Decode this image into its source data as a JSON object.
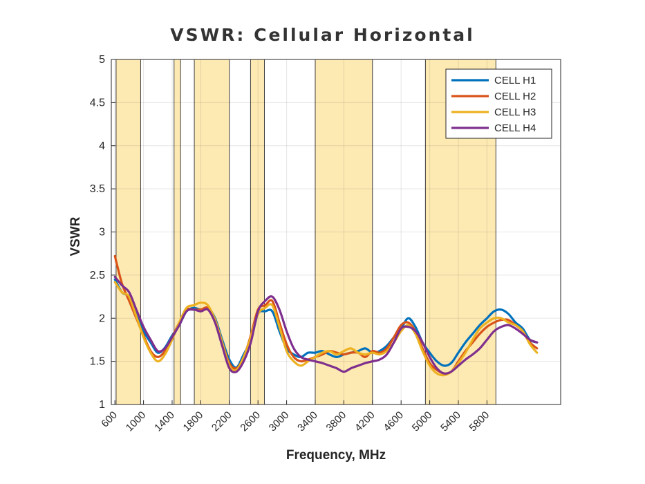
{
  "chart_data": {
    "type": "line",
    "title": "VSWR: Cellular Horizontal",
    "xlabel": "Frequency, MHz",
    "ylabel": "VSWR",
    "xlim": [
      550,
      6830
    ],
    "ylim": [
      1,
      5
    ],
    "xticks": [
      600,
      1000,
      1400,
      1800,
      2200,
      2600,
      3000,
      3400,
      3800,
      4200,
      4600,
      5000,
      5400,
      5800
    ],
    "yticks": [
      1,
      1.5,
      2,
      2.5,
      3,
      3.5,
      4,
      4.5,
      5
    ],
    "ytick_labels": [
      "1",
      "1.5",
      "2",
      "2.5",
      "3",
      "3.5",
      "4",
      "4.5",
      "5"
    ],
    "grid": true,
    "legend_location": "top-right",
    "band_color": "#fde9b2",
    "shaded_bands": [
      [
        617,
        960
      ],
      [
        1427,
        1518
      ],
      [
        1710,
        2200
      ],
      [
        2496,
        2690
      ],
      [
        3400,
        4200
      ],
      [
        4940,
        5925
      ]
    ],
    "series": [
      {
        "name": "CELL H1",
        "color": "#0072bd",
        "x": [
          600,
          700,
          800,
          900,
          1000,
          1100,
          1200,
          1300,
          1400,
          1500,
          1600,
          1700,
          1800,
          1900,
          2000,
          2100,
          2200,
          2300,
          2400,
          2500,
          2600,
          2700,
          2800,
          2900,
          3000,
          3100,
          3200,
          3300,
          3400,
          3500,
          3600,
          3700,
          3800,
          3900,
          4000,
          4100,
          4200,
          4300,
          4400,
          4500,
          4600,
          4700,
          4800,
          4900,
          5000,
          5100,
          5200,
          5300,
          5400,
          5500,
          5600,
          5700,
          5800,
          5900,
          6000,
          6100,
          6200,
          6300,
          6400,
          6500
        ],
        "values": [
          2.45,
          2.3,
          2.25,
          2.05,
          1.85,
          1.72,
          1.6,
          1.66,
          1.8,
          1.92,
          2.08,
          2.12,
          2.1,
          2.12,
          2.0,
          1.75,
          1.52,
          1.43,
          1.58,
          1.75,
          2.05,
          2.08,
          2.08,
          1.85,
          1.65,
          1.58,
          1.55,
          1.6,
          1.6,
          1.62,
          1.58,
          1.55,
          1.58,
          1.6,
          1.62,
          1.65,
          1.6,
          1.62,
          1.68,
          1.78,
          1.88,
          2.0,
          1.9,
          1.72,
          1.6,
          1.5,
          1.45,
          1.48,
          1.6,
          1.72,
          1.82,
          1.92,
          2.0,
          2.08,
          2.1,
          2.05,
          1.95,
          1.88,
          1.75,
          1.72
        ]
      },
      {
        "name": "CELL H2",
        "color": "#d95319",
        "x": [
          600,
          700,
          800,
          900,
          1000,
          1100,
          1200,
          1300,
          1400,
          1500,
          1600,
          1700,
          1800,
          1900,
          2000,
          2100,
          2200,
          2300,
          2400,
          2500,
          2600,
          2700,
          2800,
          2900,
          3000,
          3100,
          3200,
          3300,
          3400,
          3500,
          3600,
          3700,
          3800,
          3900,
          4000,
          4100,
          4200,
          4300,
          4400,
          4500,
          4600,
          4700,
          4800,
          4900,
          5000,
          5100,
          5200,
          5300,
          5400,
          5500,
          5600,
          5700,
          5800,
          5900,
          6000,
          6100,
          6200,
          6300,
          6400,
          6500
        ],
        "values": [
          2.72,
          2.4,
          2.2,
          2.0,
          1.8,
          1.62,
          1.55,
          1.62,
          1.78,
          1.95,
          2.1,
          2.1,
          2.1,
          2.12,
          1.98,
          1.72,
          1.48,
          1.42,
          1.55,
          1.8,
          2.1,
          2.15,
          2.2,
          1.95,
          1.7,
          1.55,
          1.5,
          1.52,
          1.55,
          1.58,
          1.62,
          1.6,
          1.58,
          1.6,
          1.6,
          1.55,
          1.62,
          1.6,
          1.65,
          1.78,
          1.92,
          1.95,
          1.85,
          1.65,
          1.48,
          1.4,
          1.36,
          1.38,
          1.5,
          1.62,
          1.72,
          1.82,
          1.9,
          1.95,
          1.98,
          1.98,
          1.92,
          1.85,
          1.72,
          1.65
        ]
      },
      {
        "name": "CELL H3",
        "color": "#edb120",
        "x": [
          600,
          700,
          800,
          900,
          1000,
          1100,
          1200,
          1300,
          1400,
          1500,
          1600,
          1700,
          1800,
          1900,
          2000,
          2100,
          2200,
          2300,
          2400,
          2500,
          2600,
          2700,
          2800,
          2900,
          3000,
          3100,
          3200,
          3300,
          3400,
          3500,
          3600,
          3700,
          3800,
          3900,
          4000,
          4100,
          4200,
          4300,
          4400,
          4500,
          4600,
          4700,
          4800,
          4900,
          5000,
          5100,
          5200,
          5300,
          5400,
          5500,
          5600,
          5700,
          5800,
          5900,
          6000,
          6100,
          6200,
          6300,
          6400,
          6500
        ],
        "values": [
          2.42,
          2.3,
          2.25,
          2.02,
          1.78,
          1.6,
          1.5,
          1.58,
          1.75,
          1.95,
          2.12,
          2.15,
          2.18,
          2.15,
          1.98,
          1.72,
          1.45,
          1.4,
          1.55,
          1.78,
          2.05,
          2.12,
          2.15,
          1.9,
          1.62,
          1.5,
          1.45,
          1.5,
          1.55,
          1.6,
          1.62,
          1.58,
          1.62,
          1.65,
          1.6,
          1.58,
          1.6,
          1.58,
          1.62,
          1.72,
          1.85,
          1.92,
          1.82,
          1.62,
          1.45,
          1.36,
          1.34,
          1.38,
          1.48,
          1.6,
          1.75,
          1.88,
          1.95,
          2.0,
          2.0,
          1.95,
          1.92,
          1.85,
          1.7,
          1.6
        ]
      },
      {
        "name": "CELL H4",
        "color": "#7e2f8e",
        "x": [
          600,
          700,
          800,
          900,
          1000,
          1100,
          1200,
          1300,
          1400,
          1500,
          1600,
          1700,
          1800,
          1900,
          2000,
          2100,
          2200,
          2300,
          2400,
          2500,
          2600,
          2700,
          2800,
          2900,
          3000,
          3100,
          3200,
          3300,
          3400,
          3500,
          3600,
          3700,
          3800,
          3900,
          4000,
          4100,
          4200,
          4300,
          4400,
          4500,
          4600,
          4700,
          4800,
          4900,
          5000,
          5100,
          5200,
          5300,
          5400,
          5500,
          5600,
          5700,
          5800,
          5900,
          6000,
          6100,
          6200,
          6300,
          6400,
          6500
        ],
        "values": [
          2.48,
          2.38,
          2.3,
          2.1,
          1.9,
          1.75,
          1.62,
          1.65,
          1.78,
          1.92,
          2.08,
          2.1,
          2.08,
          2.1,
          1.95,
          1.68,
          1.42,
          1.38,
          1.5,
          1.72,
          2.08,
          2.2,
          2.25,
          2.1,
          1.85,
          1.65,
          1.55,
          1.52,
          1.5,
          1.48,
          1.45,
          1.42,
          1.38,
          1.42,
          1.45,
          1.48,
          1.5,
          1.52,
          1.58,
          1.72,
          1.88,
          1.9,
          1.85,
          1.72,
          1.55,
          1.42,
          1.36,
          1.38,
          1.45,
          1.52,
          1.58,
          1.65,
          1.75,
          1.85,
          1.9,
          1.92,
          1.88,
          1.82,
          1.75,
          1.72
        ]
      }
    ]
  }
}
